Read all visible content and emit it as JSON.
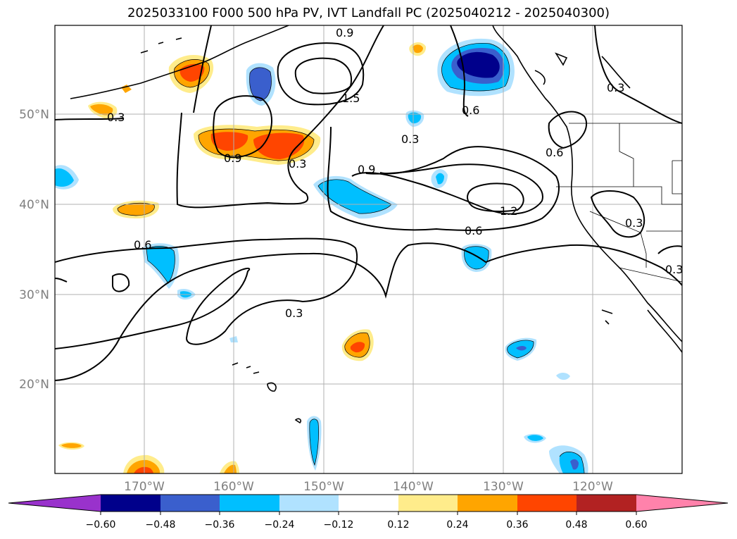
{
  "title": "2025033100 F000 500 hPa PV, IVT Landfall PC (2025040212 - 2025040300)",
  "lat_labels": [
    "50°N",
    "40°N",
    "30°N",
    "20°N"
  ],
  "lon_labels": [
    "170°W",
    "160°W",
    "150°W",
    "140°W",
    "130°W",
    "120°W"
  ],
  "contour_labels": [
    "0.9",
    "1.5",
    "0.3",
    "0.3",
    "0.9",
    "0.3",
    "0.6",
    "0.6",
    "0.3",
    "0.9",
    "1.2",
    "0.6",
    "0.6",
    "0.3",
    "0.3",
    "0.3"
  ],
  "colorbar": {
    "tick_labels": [
      "−0.60",
      "−0.48",
      "−0.36",
      "−0.24",
      "−0.12",
      "0.12",
      "0.24",
      "0.36",
      "0.48",
      "0.60"
    ],
    "colors": [
      "#9932cc",
      "#00008b",
      "#3a5fcd",
      "#00bfff",
      "#b0e2ff",
      "#ffffff",
      "#ffec8b",
      "#ffa500",
      "#ff4500",
      "#b22222",
      "#ff82ab"
    ]
  },
  "colors": {
    "coastline": "#000000",
    "grid": "#b0b0b0",
    "contour": "#000000"
  }
}
